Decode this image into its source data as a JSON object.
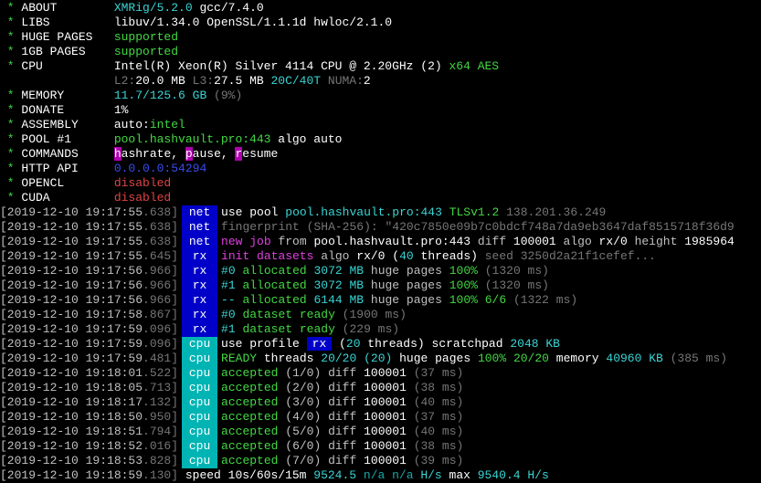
{
  "colors": {
    "tag_blue": "#0000c8",
    "tag_cyan": "#00b4b4",
    "green": "#43d843",
    "cyan": "#3ad4d4",
    "red": "#e04444",
    "blue": "#3a4cf0",
    "magenta_highlight": "#b000b0"
  },
  "header": [
    {
      "key": "ABOUT",
      "value": [
        [
          "XMRig/5.2.0",
          "c"
        ],
        [
          " gcc/7.4.0",
          "w"
        ]
      ]
    },
    {
      "key": "LIBS",
      "value": [
        [
          "libuv/1.34.0 OpenSSL/1.1.1d hwloc/2.1.0",
          "w"
        ]
      ]
    },
    {
      "key": "HUGE PAGES",
      "value": [
        [
          "supported",
          "g"
        ]
      ]
    },
    {
      "key": "1GB PAGES",
      "value": [
        [
          "supported",
          "g"
        ]
      ]
    },
    {
      "key": "CPU",
      "value": [
        [
          "Intel(R) Xeon(R) Silver 4114 CPU @ 2.20GHz (2)",
          "w"
        ],
        [
          " x64 AES",
          "g"
        ]
      ]
    },
    {
      "key": "",
      "value": [
        [
          "L2:",
          "gr"
        ],
        [
          "20.0 MB",
          "w"
        ],
        [
          " L3:",
          "gr"
        ],
        [
          "27.5 MB",
          "w"
        ],
        [
          " 20C/40T",
          "c"
        ],
        [
          " NUMA:",
          "gr"
        ],
        [
          "2",
          "w"
        ]
      ]
    },
    {
      "key": "MEMORY",
      "value": [
        [
          "11.7/125.6 GB",
          "c"
        ],
        [
          " (9%)",
          "gr"
        ]
      ]
    },
    {
      "key": "DONATE",
      "value": [
        [
          "1%",
          "w"
        ]
      ]
    },
    {
      "key": "ASSEMBLY",
      "value": [
        [
          "auto:",
          "w"
        ],
        [
          "intel",
          "g"
        ]
      ]
    },
    {
      "key": "POOL #1",
      "value": [
        [
          "pool.hashvault.pro:443",
          "g"
        ],
        [
          " algo auto",
          "w"
        ]
      ]
    },
    {
      "key": "COMMANDS",
      "value": [
        [
          "h",
          "hl"
        ],
        [
          "ashrate, ",
          "w"
        ],
        [
          "p",
          "hl"
        ],
        [
          "ause, ",
          "w"
        ],
        [
          "r",
          "hl"
        ],
        [
          "esume",
          "w"
        ]
      ]
    },
    {
      "key": "HTTP API",
      "value": [
        [
          "0.0.0.0:54294",
          "b"
        ]
      ]
    },
    {
      "key": "OPENCL",
      "value": [
        [
          "disabled",
          "r"
        ]
      ]
    },
    {
      "key": "CUDA",
      "value": [
        [
          "disabled",
          "r"
        ]
      ]
    }
  ],
  "log": [
    {
      "ts": "[2019-12-10 19:17:55",
      "ms": ".638]",
      "tag": "net",
      "msg": [
        [
          "use pool ",
          "w"
        ],
        [
          "pool.hashvault.pro:443",
          "c"
        ],
        [
          " TLSv1.2",
          "g"
        ],
        [
          " 138.201.36.249",
          "gr"
        ]
      ]
    },
    {
      "ts": "[2019-12-10 19:17:55",
      "ms": ".638]",
      "tag": "net",
      "msg": [
        [
          "fingerprint (SHA-256): \"420c7850e09b7c0bdcf748a7da9eb3647daf8515718f36d9",
          "gr"
        ]
      ]
    },
    {
      "ts": "[2019-12-10 19:17:55",
      "ms": ".638]",
      "tag": "net",
      "msg": [
        [
          "new job",
          "m"
        ],
        [
          " from ",
          "n"
        ],
        [
          "pool.hashvault.pro:443",
          "w"
        ],
        [
          " diff ",
          "n"
        ],
        [
          "100001",
          "w"
        ],
        [
          " algo ",
          "n"
        ],
        [
          "rx/0",
          "w"
        ],
        [
          " height ",
          "n"
        ],
        [
          "1985964",
          "w"
        ]
      ]
    },
    {
      "ts": "[2019-12-10 19:17:55",
      "ms": ".645]",
      "tag": "rx",
      "msg": [
        [
          "init datasets",
          "m"
        ],
        [
          " algo ",
          "n"
        ],
        [
          "rx/0",
          "w"
        ],
        [
          " (",
          "w"
        ],
        [
          "40",
          "c"
        ],
        [
          " threads)",
          "w"
        ],
        [
          " seed 3250d2a21f1cefef...",
          "gr"
        ]
      ]
    },
    {
      "ts": "[2019-12-10 19:17:56",
      "ms": ".966]",
      "tag": "rx",
      "msg": [
        [
          "#0",
          "c"
        ],
        [
          " allocated ",
          "g"
        ],
        [
          "3072 MB",
          "c"
        ],
        [
          " huge pages ",
          "n"
        ],
        [
          "100%",
          "g"
        ],
        [
          " (1320 ms)",
          "gr"
        ]
      ]
    },
    {
      "ts": "[2019-12-10 19:17:56",
      "ms": ".966]",
      "tag": "rx",
      "msg": [
        [
          "#1",
          "c"
        ],
        [
          " allocated ",
          "g"
        ],
        [
          "3072 MB",
          "c"
        ],
        [
          " huge pages ",
          "n"
        ],
        [
          "100%",
          "g"
        ],
        [
          " (1320 ms)",
          "gr"
        ]
      ]
    },
    {
      "ts": "[2019-12-10 19:17:56",
      "ms": ".966]",
      "tag": "rx",
      "msg": [
        [
          "--",
          "c"
        ],
        [
          " allocated ",
          "g"
        ],
        [
          "6144 MB",
          "c"
        ],
        [
          " huge pages ",
          "n"
        ],
        [
          "100%",
          "g"
        ],
        [
          " 6/6",
          "g"
        ],
        [
          " (1322 ms)",
          "gr"
        ]
      ]
    },
    {
      "ts": "[2019-12-10 19:17:58",
      "ms": ".867]",
      "tag": "rx",
      "msg": [
        [
          "#0",
          "c"
        ],
        [
          " dataset ready",
          "g"
        ],
        [
          " (1900 ms)",
          "gr"
        ]
      ]
    },
    {
      "ts": "[2019-12-10 19:17:59",
      "ms": ".096]",
      "tag": "rx",
      "msg": [
        [
          "#1",
          "c"
        ],
        [
          " dataset ready",
          "g"
        ],
        [
          " (229 ms)",
          "gr"
        ]
      ]
    },
    {
      "ts": "[2019-12-10 19:17:59",
      "ms": ".096]",
      "tag": "cpu",
      "msg": [
        [
          "use profile ",
          "w"
        ],
        [
          "rx",
          "inl"
        ],
        [
          " (",
          "w"
        ],
        [
          "20",
          "c"
        ],
        [
          " threads)",
          "w"
        ],
        [
          " scratchpad ",
          "w"
        ],
        [
          "2048 KB",
          "c"
        ]
      ]
    },
    {
      "ts": "[2019-12-10 19:17:59",
      "ms": ".481]",
      "tag": "cpu",
      "msg": [
        [
          "READY",
          "g"
        ],
        [
          " threads ",
          "w"
        ],
        [
          "20/20",
          "c"
        ],
        [
          " (20)",
          "c"
        ],
        [
          " huge pages ",
          "w"
        ],
        [
          "100%",
          "g"
        ],
        [
          " 20/20",
          "g"
        ],
        [
          " memory ",
          "w"
        ],
        [
          "40960 KB",
          "c"
        ],
        [
          " (385 ms)",
          "gr"
        ]
      ]
    },
    {
      "ts": "[2019-12-10 19:18:01",
      "ms": ".522]",
      "tag": "cpu",
      "msg": [
        [
          "accepted",
          "g"
        ],
        [
          " (1/0)",
          "n"
        ],
        [
          " diff ",
          "n"
        ],
        [
          "100001",
          "w"
        ],
        [
          " (37 ms)",
          "gr"
        ]
      ]
    },
    {
      "ts": "[2019-12-10 19:18:05",
      "ms": ".713]",
      "tag": "cpu",
      "msg": [
        [
          "accepted",
          "g"
        ],
        [
          " (2/0)",
          "n"
        ],
        [
          " diff ",
          "n"
        ],
        [
          "100001",
          "w"
        ],
        [
          " (38 ms)",
          "gr"
        ]
      ]
    },
    {
      "ts": "[2019-12-10 19:18:17",
      "ms": ".132]",
      "tag": "cpu",
      "msg": [
        [
          "accepted",
          "g"
        ],
        [
          " (3/0)",
          "n"
        ],
        [
          " diff ",
          "n"
        ],
        [
          "100001",
          "w"
        ],
        [
          " (40 ms)",
          "gr"
        ]
      ]
    },
    {
      "ts": "[2019-12-10 19:18:50",
      "ms": ".950]",
      "tag": "cpu",
      "msg": [
        [
          "accepted",
          "g"
        ],
        [
          " (4/0)",
          "n"
        ],
        [
          " diff ",
          "n"
        ],
        [
          "100001",
          "w"
        ],
        [
          " (37 ms)",
          "gr"
        ]
      ]
    },
    {
      "ts": "[2019-12-10 19:18:51",
      "ms": ".794]",
      "tag": "cpu",
      "msg": [
        [
          "accepted",
          "g"
        ],
        [
          " (5/0)",
          "n"
        ],
        [
          " diff ",
          "n"
        ],
        [
          "100001",
          "w"
        ],
        [
          " (40 ms)",
          "gr"
        ]
      ]
    },
    {
      "ts": "[2019-12-10 19:18:52",
      "ms": ".016]",
      "tag": "cpu",
      "msg": [
        [
          "accepted",
          "g"
        ],
        [
          " (6/0)",
          "n"
        ],
        [
          " diff ",
          "n"
        ],
        [
          "100001",
          "w"
        ],
        [
          " (38 ms)",
          "gr"
        ]
      ]
    },
    {
      "ts": "[2019-12-10 19:18:53",
      "ms": ".828]",
      "tag": "cpu",
      "msg": [
        [
          "accepted",
          "g"
        ],
        [
          " (7/0)",
          "n"
        ],
        [
          " diff ",
          "n"
        ],
        [
          "100001",
          "w"
        ],
        [
          " (39 ms)",
          "gr"
        ]
      ]
    },
    {
      "ts": "[2019-12-10 19:18:59",
      "ms": ".130]",
      "tag": "",
      "msg": [
        [
          " speed ",
          "w"
        ],
        [
          "10s/60s/15m ",
          "w"
        ],
        [
          "9524.5",
          "c"
        ],
        [
          " n/a n/a",
          "dc"
        ],
        [
          " H/s",
          "c"
        ],
        [
          " max ",
          "w"
        ],
        [
          "9540.4 H/s",
          "c"
        ]
      ]
    }
  ]
}
